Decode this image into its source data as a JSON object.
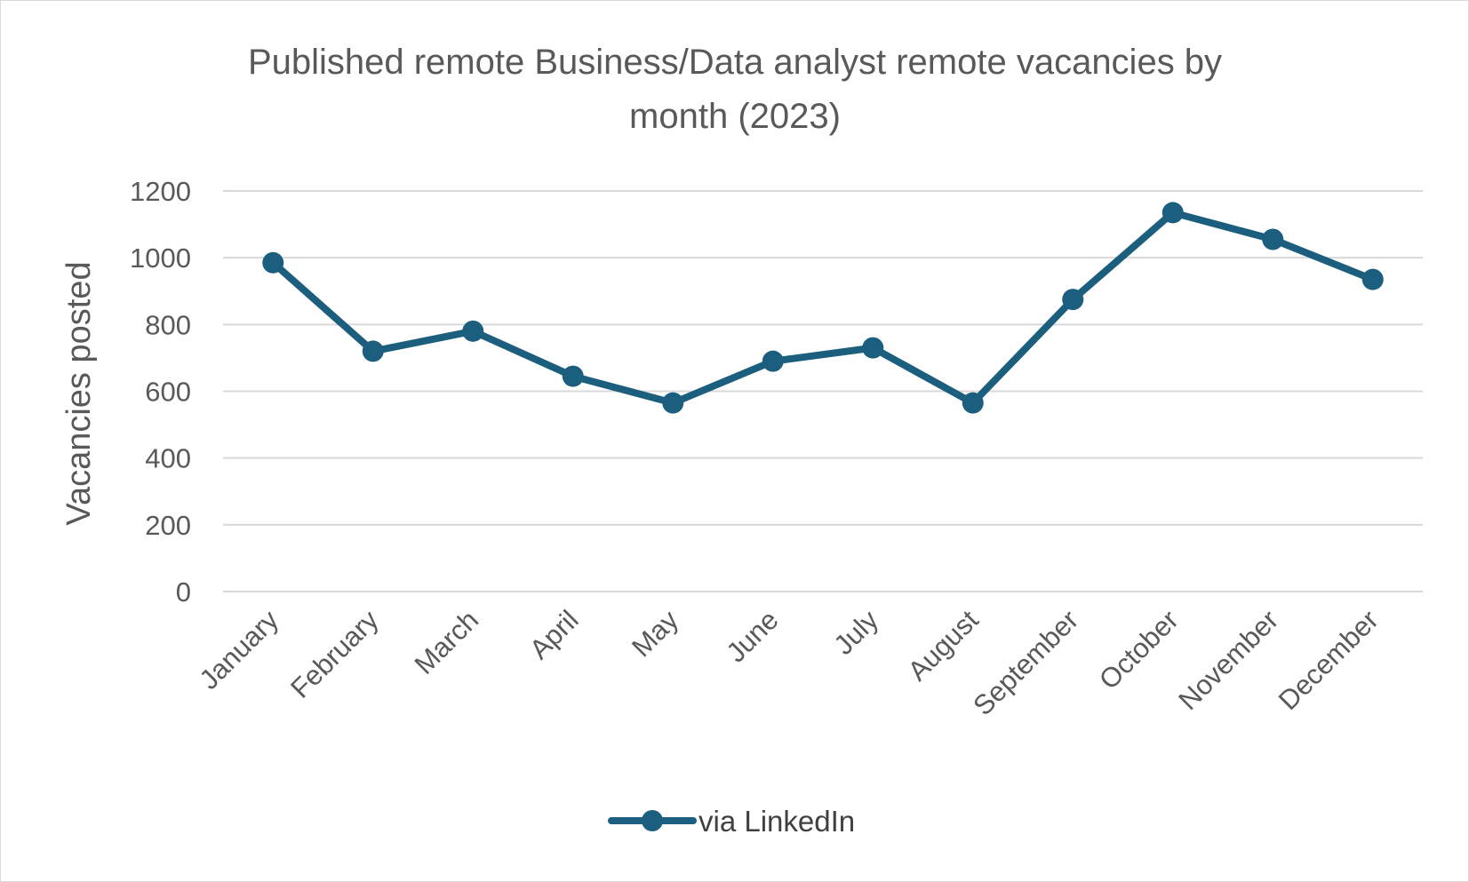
{
  "chart_data": {
    "type": "line",
    "title": "Published remote Business/Data analyst remote vacancies by month (2023)",
    "title_lines": [
      "Published remote Business/Data analyst remote vacancies by",
      "month (2023)"
    ],
    "xlabel": "",
    "ylabel": "Vacancies  posted",
    "categories": [
      "January",
      "February",
      "March",
      "April",
      "May",
      "June",
      "July",
      "August",
      "September",
      "October",
      "November",
      "December"
    ],
    "series": [
      {
        "name": "via LinkedIn",
        "color": "#1b5e7e",
        "values": [
          985,
          720,
          780,
          645,
          565,
          690,
          730,
          565,
          875,
          1135,
          1055,
          935
        ]
      }
    ],
    "ylim": [
      0,
      1200
    ],
    "yticks": [
      "0",
      "200",
      "400",
      "600",
      "800",
      "1000",
      "1200"
    ],
    "grid": true,
    "gridline_color": "#d9d9d9",
    "legend": "bottom"
  }
}
